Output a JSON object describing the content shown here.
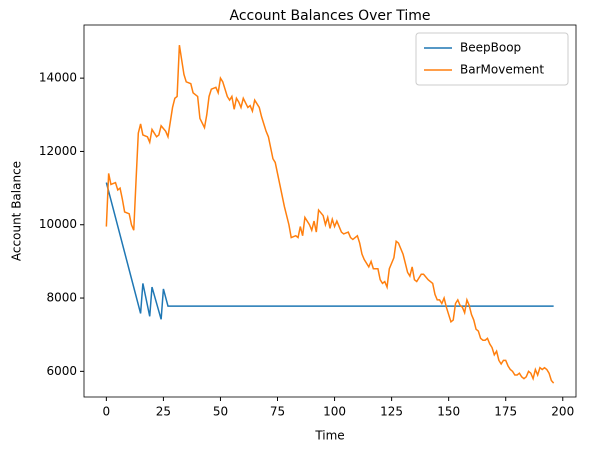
{
  "chart_data": {
    "type": "line",
    "title": "Account Balances Over Time",
    "xlabel": "Time",
    "ylabel": "Account Balance",
    "xlim": [
      -9.8,
      205.8
    ],
    "xticks": [
      0,
      25,
      50,
      75,
      100,
      125,
      150,
      175,
      200
    ],
    "ylim": [
      5300,
      15450
    ],
    "yticks": [
      6000,
      8000,
      10000,
      12000,
      14000
    ],
    "legend": "upper right",
    "series": [
      {
        "name": "BeepBoop",
        "color": "#1f77b4",
        "x": [
          0,
          15,
          16,
          19,
          20,
          24,
          25,
          27,
          196
        ],
        "values": [
          11150,
          7580,
          8400,
          7500,
          8300,
          7420,
          8250,
          7780,
          7780
        ]
      },
      {
        "name": "BarMovement",
        "color": "#ff7f0e",
        "x": [
          0,
          1,
          2,
          4,
          5,
          6,
          7,
          8,
          10,
          11,
          12,
          13,
          14,
          15,
          16,
          18,
          19,
          20,
          22,
          23,
          24,
          26,
          27,
          28,
          29,
          30,
          31,
          32,
          33,
          34,
          35,
          37,
          38,
          40,
          41,
          43,
          44,
          45,
          46,
          48,
          49,
          50,
          51,
          53,
          54,
          55,
          56,
          57,
          58,
          59,
          60,
          62,
          63,
          64,
          65,
          67,
          68,
          70,
          71,
          72,
          73,
          74,
          76,
          78,
          80,
          81,
          83,
          84,
          85,
          86,
          87,
          89,
          90,
          91,
          92,
          93,
          95,
          96,
          97,
          98,
          99,
          100,
          101,
          103,
          104,
          106,
          107,
          108,
          110,
          111,
          112,
          113,
          115,
          116,
          117,
          119,
          120,
          121,
          122,
          123,
          124,
          126,
          127,
          128,
          130,
          131,
          132,
          133,
          134,
          135,
          136,
          138,
          139,
          141,
          143,
          144,
          145,
          146,
          147,
          148,
          149,
          150,
          151,
          152,
          153,
          154,
          155,
          156,
          157,
          158,
          159,
          160,
          161,
          162,
          163,
          164,
          165,
          166,
          167,
          168,
          169,
          170,
          171,
          172,
          173,
          174,
          175,
          176,
          177,
          178,
          179,
          180,
          181,
          182,
          183,
          184,
          185,
          186,
          187,
          188,
          189,
          190,
          191,
          192,
          193,
          194,
          195,
          196
        ],
        "values": [
          9950,
          11400,
          11100,
          11150,
          10950,
          11000,
          10700,
          10350,
          10300,
          10000,
          9850,
          11200,
          12500,
          12750,
          12450,
          12400,
          12250,
          12600,
          12400,
          12450,
          12700,
          12550,
          12400,
          12800,
          13200,
          13450,
          13500,
          14900,
          14500,
          14100,
          13900,
          13850,
          13600,
          13500,
          12900,
          12650,
          13000,
          13500,
          13700,
          13750,
          13600,
          14000,
          13900,
          13500,
          13400,
          13500,
          13150,
          13450,
          13350,
          13200,
          13450,
          13200,
          13250,
          13100,
          13400,
          13200,
          12950,
          12550,
          12400,
          12100,
          11800,
          11700,
          11100,
          10500,
          10000,
          9650,
          9700,
          9650,
          9950,
          9700,
          10200,
          10000,
          9850,
          10100,
          9800,
          10400,
          10250,
          10000,
          10200,
          9900,
          10150,
          9950,
          10100,
          9800,
          9750,
          9800,
          9650,
          9600,
          9700,
          9500,
          9200,
          9050,
          8850,
          9000,
          8800,
          8800,
          8500,
          8400,
          8450,
          8300,
          8800,
          9100,
          9550,
          9500,
          9200,
          8950,
          8700,
          8600,
          8850,
          8500,
          8450,
          8650,
          8650,
          8500,
          8400,
          8100,
          7950,
          7950,
          7850,
          8000,
          7750,
          7550,
          7350,
          7400,
          7850,
          7950,
          7800,
          7750,
          7600,
          7950,
          7800,
          7550,
          7400,
          7150,
          7100,
          6900,
          6850,
          6850,
          6900,
          6750,
          6650,
          6450,
          6550,
          6300,
          6200,
          6300,
          6300,
          6150,
          6050,
          6000,
          5900,
          5900,
          5950,
          5850,
          5800,
          5850,
          6000,
          5950,
          5800,
          6050,
          5900,
          6100,
          6050,
          6100,
          6050,
          5950,
          5750,
          5680
        ]
      }
    ]
  }
}
